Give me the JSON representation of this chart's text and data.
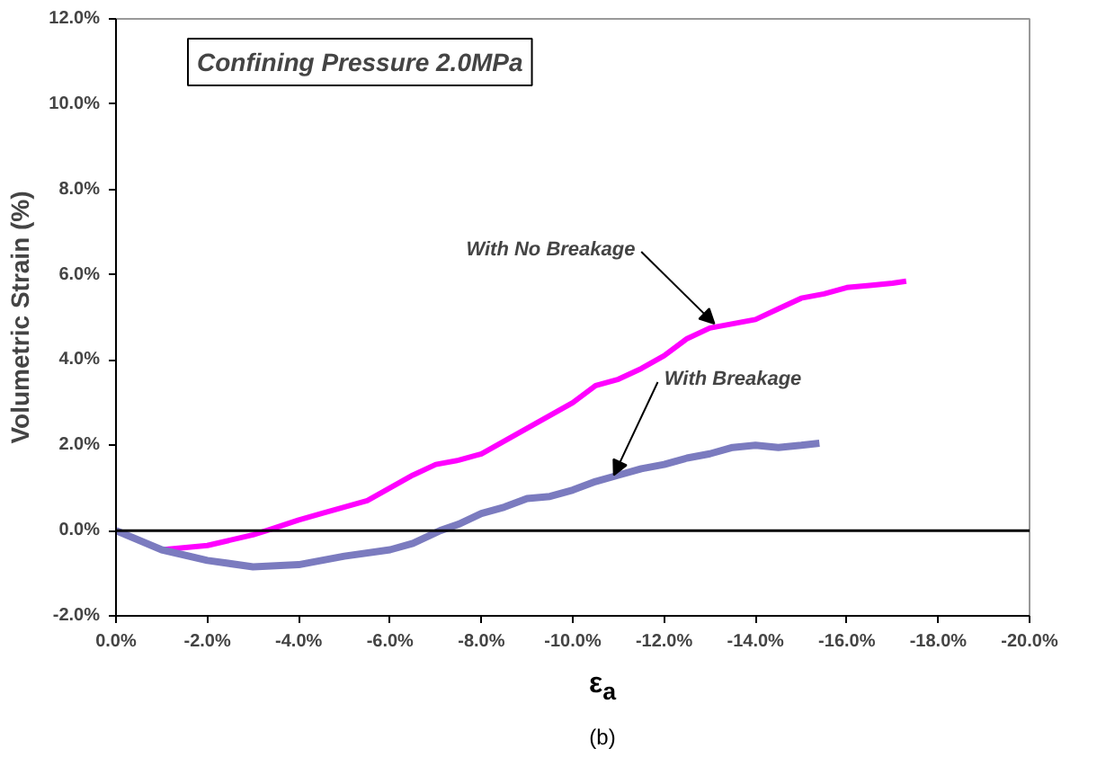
{
  "chart_data": {
    "type": "line",
    "xlabel": "ε$_{a}$",
    "ylabel": "Volumetric Strain (%)",
    "xlim": [
      0,
      -20
    ],
    "ylim": [
      -2,
      12
    ],
    "xticks": [
      {
        "value": 0,
        "label": "0.0%"
      },
      {
        "value": -2,
        "label": "-2.0%"
      },
      {
        "value": -4,
        "label": "-4.0%"
      },
      {
        "value": -6,
        "label": "-6.0%"
      },
      {
        "value": -8,
        "label": "-8.0%"
      },
      {
        "value": -10,
        "label": "-10.0%"
      },
      {
        "value": -12,
        "label": "-12.0%"
      },
      {
        "value": -14,
        "label": "-14.0%"
      },
      {
        "value": -16,
        "label": "-16.0%"
      },
      {
        "value": -18,
        "label": "-18.0%"
      },
      {
        "value": -20,
        "label": "-20.0%"
      }
    ],
    "yticks": [
      {
        "value": -2,
        "label": "-2.0%"
      },
      {
        "value": 0,
        "label": "0.0%"
      },
      {
        "value": 2,
        "label": "2.0%"
      },
      {
        "value": 4,
        "label": "4.0%"
      },
      {
        "value": 6,
        "label": "6.0%"
      },
      {
        "value": 8,
        "label": "8.0%"
      },
      {
        "value": 10,
        "label": "10.0%"
      },
      {
        "value": 12,
        "label": "12.0%"
      }
    ],
    "grid": false,
    "legend": false,
    "ref_lines": [
      {
        "axis": "y",
        "value": 0,
        "color": "#000000"
      }
    ],
    "series": [
      {
        "color": "#ff00ff",
        "x": [
          0,
          -1,
          -2,
          -3,
          -3.3,
          -4,
          -4.5,
          -5.5,
          -6,
          -6.5,
          -7,
          -7.5,
          -8,
          -8.5,
          -9,
          -9.5,
          -10,
          -10.5,
          -11,
          -11.5,
          -12,
          -12.5,
          -13,
          -13.5,
          -14,
          -14.5,
          -15,
          -15.5,
          -16,
          -16.5,
          -17,
          -17.3
        ],
        "values": [
          0,
          -0.45,
          -0.35,
          -0.1,
          0,
          0.25,
          0.4,
          0.7,
          1.0,
          1.3,
          1.55,
          1.65,
          1.8,
          2.1,
          2.4,
          2.7,
          3.0,
          3.4,
          3.55,
          3.8,
          4.1,
          4.5,
          4.75,
          4.85,
          4.95,
          5.2,
          5.45,
          5.55,
          5.7,
          5.75,
          5.8,
          5.85
        ]
      },
      {
        "color": "#7b7bbf",
        "x": [
          0,
          -1,
          -2,
          -3,
          -4,
          -5,
          -6,
          -6.5,
          -7.1,
          -7.5,
          -8,
          -8.5,
          -9,
          -9.5,
          -10,
          -10.5,
          -11,
          -11.5,
          -12,
          -12.5,
          -13,
          -13.5,
          -14,
          -14.5,
          -15,
          -15.4
        ],
        "values": [
          0,
          -0.45,
          -0.7,
          -0.85,
          -0.8,
          -0.6,
          -0.45,
          -0.3,
          0,
          0.15,
          0.4,
          0.55,
          0.75,
          0.8,
          0.95,
          1.15,
          1.3,
          1.45,
          1.55,
          1.7,
          1.8,
          1.95,
          2.0,
          1.95,
          2.0,
          2.05
        ]
      }
    ],
    "annotations": [
      "Confining Pressure 2.0MPa",
      {
        "text": "With No Breakage",
        "x": -13.1,
        "y": 4.85
      },
      {
        "text": "With Breakage",
        "x": -10.9,
        "y": 1.3
      },
      "(b)"
    ]
  }
}
